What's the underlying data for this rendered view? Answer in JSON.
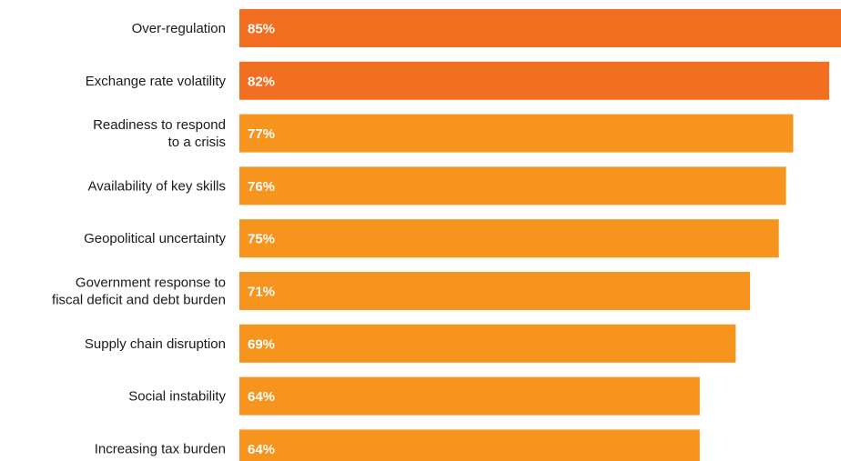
{
  "chart_data": {
    "type": "bar",
    "orientation": "horizontal",
    "categories": [
      "Over-regulation",
      "Exchange rate volatility",
      "Readiness to respond\nto a crisis",
      "Availability of key skills",
      "Geopolitical uncertainty",
      "Government response to\nfiscal deficit and debt burden",
      "Supply chain disruption",
      "Social instability",
      "Increasing tax burden"
    ],
    "values": [
      85,
      82,
      77,
      76,
      75,
      71,
      69,
      64,
      64
    ],
    "value_labels": [
      "85%",
      "82%",
      "77%",
      "76%",
      "75%",
      "71%",
      "69%",
      "64%",
      "64%"
    ],
    "highlight_count": 2,
    "colors": {
      "highlight": "#f26f21",
      "default": "#f7941d"
    },
    "title": "",
    "xlabel": "",
    "ylabel": "",
    "grid": false,
    "legend": "none"
  }
}
